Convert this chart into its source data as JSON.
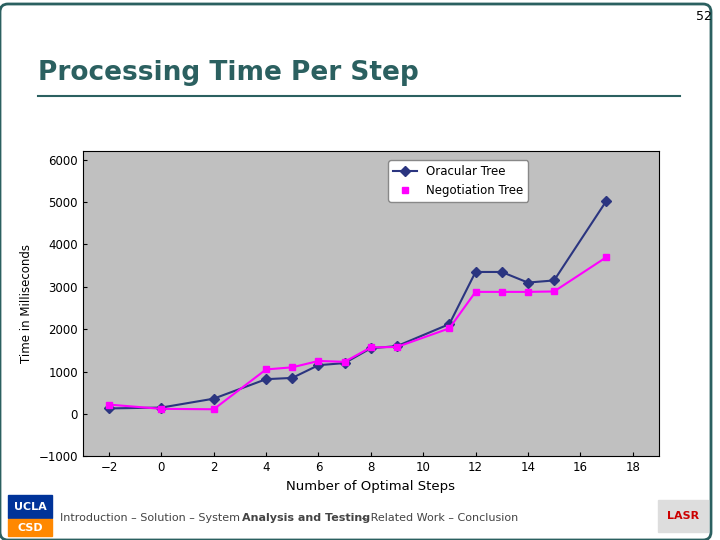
{
  "title": "Processing Time Per Step",
  "xlabel": "Number of Optimal Steps",
  "ylabel": "Time in Milliseconds",
  "xlim": [
    -3,
    19
  ],
  "ylim": [
    -1000,
    6200
  ],
  "yticks": [
    -1000,
    0,
    1000,
    2000,
    3000,
    4000,
    5000,
    6000
  ],
  "xticks": [
    -2,
    0,
    2,
    4,
    6,
    8,
    10,
    12,
    14,
    16,
    18
  ],
  "oracular_x": [
    -2,
    0,
    2,
    4,
    5,
    6,
    7,
    8,
    9,
    11,
    12,
    13,
    14,
    15,
    17
  ],
  "oracular_y": [
    130,
    150,
    360,
    820,
    850,
    1150,
    1200,
    1550,
    1600,
    2120,
    3350,
    3350,
    3100,
    3150,
    5030
  ],
  "negotiation_x": [
    -2,
    0,
    2,
    4,
    5,
    6,
    7,
    8,
    9,
    11,
    12,
    13,
    14,
    15,
    17
  ],
  "negotiation_y": [
    220,
    120,
    110,
    1050,
    1100,
    1250,
    1230,
    1570,
    1580,
    2020,
    2880,
    2880,
    2880,
    2890,
    3700
  ],
  "oracular_color": "#2B3580",
  "negotiation_color": "#FF00FF",
  "bg_color": "#C0C0C0",
  "title_color": "#2B6060",
  "border_color": "#2B6060",
  "slide_number": "52",
  "footer_normal": [
    "Introduction – Solution – System – ",
    " – Related Work – Conclusion"
  ],
  "footer_bold": "Analysis and Testing",
  "ucla_top_color": "#003399",
  "ucla_bottom_color": "#FF8800"
}
